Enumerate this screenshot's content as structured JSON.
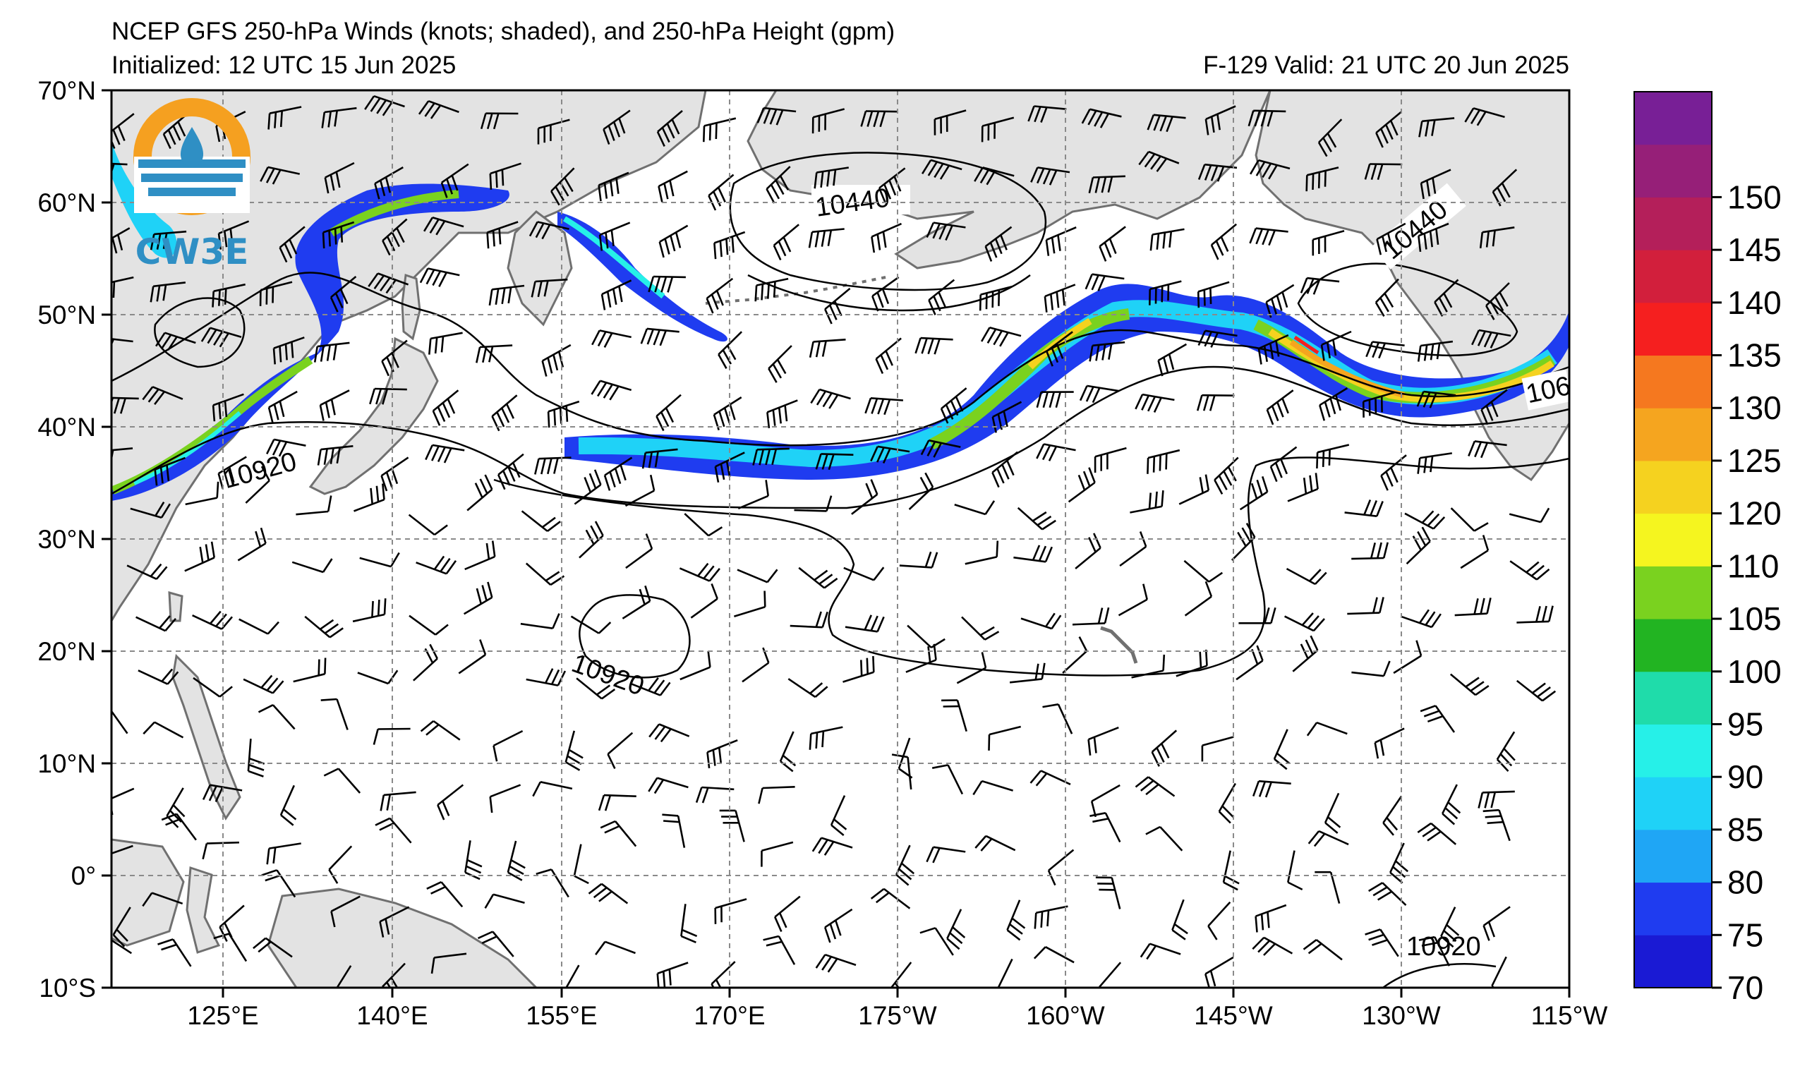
{
  "title_line1": "NCEP GFS 250-hPa Winds (knots; shaded), and 250-hPa Height (gpm)",
  "title_line2_left": "Initialized: 12 UTC 15 Jun 2025",
  "title_line2_right": "F-129  Valid: 21 UTC 20 Jun 2025",
  "logo": {
    "text": "CW3E",
    "icon": "cw3e-logo-icon"
  },
  "lon_ticks": [
    "125°E",
    "140°E",
    "155°E",
    "170°E",
    "175°W",
    "160°W",
    "145°W",
    "130°W",
    "115°W"
  ],
  "lat_ticks": [
    "70°N",
    "60°N",
    "50°N",
    "40°N",
    "30°N",
    "20°N",
    "10°N",
    "0°",
    "10°S"
  ],
  "colorbar": {
    "labels": [
      "70",
      "75",
      "80",
      "85",
      "90",
      "95",
      "100",
      "105",
      "110",
      "120",
      "125",
      "130",
      "135",
      "140",
      "145",
      "150"
    ],
    "colors": [
      "#1a1ad4",
      "#1f3cf0",
      "#1fa6f5",
      "#1fd2f7",
      "#26f0e8",
      "#1fdcaa",
      "#22b422",
      "#7ad21f",
      "#f5f51f",
      "#f5d21f",
      "#f5a51f",
      "#f5781f",
      "#f51f1f",
      "#d21f3c",
      "#b41f5a",
      "#961f78",
      "#781f96"
    ]
  },
  "contour_labels": [
    "10440",
    "10440",
    "10920",
    "10920",
    "10920",
    "106"
  ],
  "colors": {
    "land": "#e3e3e3",
    "ocean": "#ffffff",
    "coast": "#707070",
    "grid": "#8a8a8a"
  }
}
